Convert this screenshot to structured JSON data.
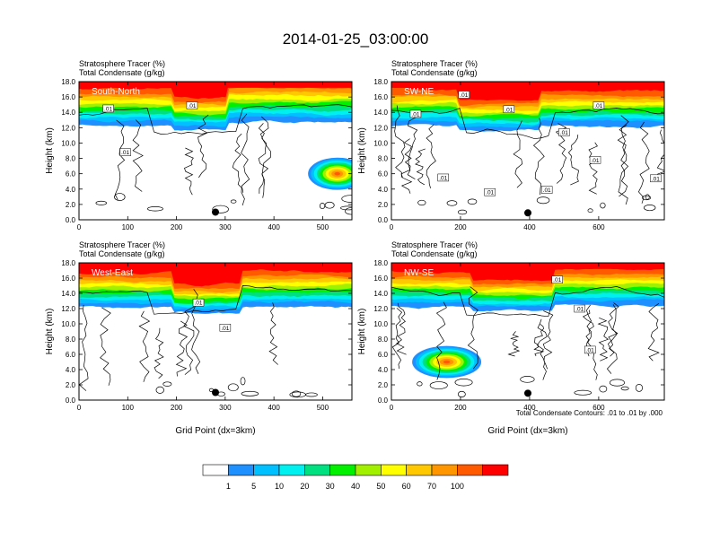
{
  "title": "2014-01-25_03:00:00",
  "footnote": "Total Condensate Contours: .01 to .01 by .000",
  "chart_data": [
    {
      "type": "heatmap",
      "panel_label": "South-North",
      "header": [
        "Stratosphere Tracer   (%)",
        "Total Condensate   (g/kg)"
      ],
      "ylabel": "Height (km)",
      "xlabel": "",
      "xlim": [
        0,
        560
      ],
      "xticks": [
        0,
        100,
        200,
        300,
        400,
        500
      ],
      "ylim": [
        0,
        18
      ],
      "yticks": [
        "0.0",
        "2.0",
        "4.0",
        "6.0",
        "8.0",
        "10.0",
        "12.0",
        "14.0",
        "16.0",
        "18.0"
      ],
      "tracer_blobs": [
        {
          "x_center": 530,
          "y_center": 6.0,
          "x_halfwidth": 60,
          "y_halfwidth": 2.1,
          "peak_pct": 75
        }
      ],
      "location_marker": {
        "x": 280,
        "y": 1.0
      },
      "contour_labels": [
        {
          "text": ".01",
          "x": 60,
          "y": 14.5
        },
        {
          "text": ".01",
          "x": 232,
          "y": 14.9
        },
        {
          "text": ".01",
          "x": 95,
          "y": 8.8
        }
      ]
    },
    {
      "type": "heatmap",
      "panel_label": "SW-NE",
      "header": [
        "Stratosphere Tracer   (%)",
        "Total Condensate   (g/kg)"
      ],
      "ylabel": "Height (km)",
      "xlabel": "",
      "xlim": [
        0,
        790
      ],
      "xticks": [
        0,
        200,
        400,
        600
      ],
      "ylim": [
        0,
        18
      ],
      "yticks": [
        "0.0",
        "2.0",
        "4.0",
        "6.0",
        "8.0",
        "10.0",
        "12.0",
        "14.0",
        "16.0",
        "18.0"
      ],
      "tracer_blobs": [],
      "location_marker": {
        "x": 395,
        "y": 0.9
      },
      "contour_labels": [
        {
          "text": ".01",
          "x": 210,
          "y": 16.3
        },
        {
          "text": ".01",
          "x": 70,
          "y": 13.8
        },
        {
          "text": ".01",
          "x": 340,
          "y": 14.4
        },
        {
          "text": ".01",
          "x": 500,
          "y": 11.4
        },
        {
          "text": ".01",
          "x": 600,
          "y": 14.9
        },
        {
          "text": ".01",
          "x": 150,
          "y": 5.5
        },
        {
          "text": ".01",
          "x": 285,
          "y": 3.6
        },
        {
          "text": ".01",
          "x": 450,
          "y": 3.9
        },
        {
          "text": ".01",
          "x": 590,
          "y": 7.8
        },
        {
          "text": ".01",
          "x": 765,
          "y": 5.4
        }
      ]
    },
    {
      "type": "heatmap",
      "panel_label": "West-East",
      "header": [
        "Stratosphere Tracer   (%)",
        "Total Condensate   (g/kg)"
      ],
      "ylabel": "Height (km)",
      "xlabel": "Grid Point (dx=3km)",
      "xlim": [
        0,
        560
      ],
      "xticks": [
        0,
        100,
        200,
        300,
        400,
        500
      ],
      "ylim": [
        0,
        18
      ],
      "yticks": [
        "0.0",
        "2.0",
        "4.0",
        "6.0",
        "8.0",
        "10.0",
        "12.0",
        "14.0",
        "16.0",
        "18.0"
      ],
      "tracer_blobs": [],
      "location_marker": {
        "x": 280,
        "y": 1.0
      },
      "contour_labels": [
        {
          "text": ".01",
          "x": 245,
          "y": 12.8
        },
        {
          "text": ".01",
          "x": 300,
          "y": 9.5
        }
      ]
    },
    {
      "type": "heatmap",
      "panel_label": "NW-SE",
      "header": [
        "Stratosphere Tracer   (%)",
        "Total Condensate   (g/kg)"
      ],
      "ylabel": "Height (km)",
      "xlabel": "Grid Point (dx=3km)",
      "xlim": [
        0,
        790
      ],
      "xticks": [
        0,
        200,
        400,
        600
      ],
      "ylim": [
        0,
        18
      ],
      "yticks": [
        "0.0",
        "2.0",
        "4.0",
        "6.0",
        "8.0",
        "10.0",
        "12.0",
        "14.0",
        "16.0",
        "18.0"
      ],
      "tracer_blobs": [
        {
          "x_center": 160,
          "y_center": 5.0,
          "x_halfwidth": 100,
          "y_halfwidth": 2.1,
          "peak_pct": 75
        }
      ],
      "location_marker": {
        "x": 395,
        "y": 0.9
      },
      "contour_labels": [
        {
          "text": ".01",
          "x": 480,
          "y": 15.8
        },
        {
          "text": ".01",
          "x": 545,
          "y": 12.0
        },
        {
          "text": ".01",
          "x": 575,
          "y": 6.6
        }
      ]
    }
  ],
  "colorbar": {
    "labels": [
      "1",
      "5",
      "10",
      "20",
      "30",
      "40",
      "50",
      "60",
      "70",
      "100"
    ],
    "colors": [
      "#ffffff",
      "#1e90ff",
      "#00c0ff",
      "#00f0f0",
      "#00e080",
      "#00f000",
      "#a0f000",
      "#ffff00",
      "#ffc800",
      "#ff9600",
      "#ff5a00",
      "#ff0000"
    ]
  }
}
